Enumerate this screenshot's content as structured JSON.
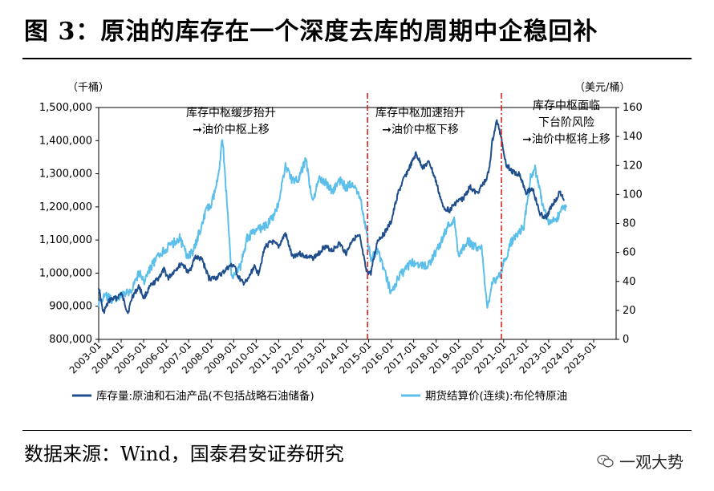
{
  "title": "图 3：原油的库存在一个深度去库的周期中企稳回补",
  "source": "数据来源：Wind，国泰君安证券研究",
  "watermark": "一观大势",
  "chart_data": {
    "type": "line",
    "left_axis_unit": "（千桶）",
    "right_axis_unit": "（美元/桶）",
    "left_ylim": [
      800000,
      1500000
    ],
    "right_ylim": [
      0,
      160
    ],
    "left_ticks": [
      "800,000",
      "900,000",
      "1,000,000",
      "1,100,000",
      "1,200,000",
      "1,300,000",
      "1,400,000",
      "1,500,000"
    ],
    "left_tick_values": [
      800000,
      900000,
      1000000,
      1100000,
      1200000,
      1300000,
      1400000,
      1500000
    ],
    "right_ticks": [
      "0",
      "20",
      "40",
      "60",
      "80",
      "100",
      "120",
      "140",
      "160"
    ],
    "right_tick_values": [
      0,
      20,
      40,
      60,
      80,
      100,
      120,
      140,
      160
    ],
    "xlim": [
      2003.0,
      2026.0
    ],
    "x_ticks": [
      "2003-01",
      "2004-01",
      "2005-01",
      "2006-01",
      "2007-01",
      "2008-01",
      "2009-01",
      "2010-01",
      "2011-01",
      "2012-01",
      "2013-01",
      "2014-01",
      "2015-01",
      "2016-01",
      "2017-01",
      "2018-01",
      "2019-01",
      "2020-01",
      "2021-01",
      "2022-01",
      "2023-01",
      "2024-01",
      "2025-01"
    ],
    "x_tick_values": [
      2003,
      2004,
      2005,
      2006,
      2007,
      2008,
      2009,
      2010,
      2011,
      2012,
      2013,
      2014,
      2015,
      2016,
      2017,
      2018,
      2019,
      2020,
      2021,
      2022,
      2023,
      2024,
      2025
    ],
    "series": [
      {
        "name": "库存量:原油和石油产品(不包括战略石油储备)",
        "axis": "left",
        "color": "#1f4e8c",
        "x": [
          2003.0,
          2003.2,
          2003.5,
          2003.8,
          2004.0,
          2004.3,
          2004.5,
          2004.8,
          2005.0,
          2005.3,
          2005.6,
          2005.9,
          2006.1,
          2006.4,
          2006.7,
          2007.0,
          2007.3,
          2007.6,
          2007.9,
          2008.2,
          2008.5,
          2008.8,
          2009.0,
          2009.2,
          2009.4,
          2009.6,
          2009.9,
          2010.1,
          2010.4,
          2010.7,
          2011.0,
          2011.3,
          2011.6,
          2011.9,
          2012.2,
          2012.5,
          2012.8,
          2013.0,
          2013.4,
          2013.7,
          2014.0,
          2014.3,
          2014.6,
          2014.9,
          2015.1,
          2015.4,
          2015.7,
          2016.0,
          2016.3,
          2016.6,
          2016.9,
          2017.1,
          2017.4,
          2017.7,
          2018.0,
          2018.3,
          2018.6,
          2018.9,
          2019.2,
          2019.5,
          2019.8,
          2020.0,
          2020.2,
          2020.35,
          2020.5,
          2020.7,
          2020.9,
          2021.1,
          2021.4,
          2021.7,
          2022.0,
          2022.3,
          2022.6,
          2022.9,
          2023.1,
          2023.3,
          2023.5,
          2023.7
        ],
        "values": [
          960000,
          880000,
          920000,
          925000,
          940000,
          880000,
          930000,
          960000,
          925000,
          960000,
          980000,
          1010000,
          985000,
          1010000,
          1030000,
          1000000,
          1050000,
          1040000,
          985000,
          985000,
          1000000,
          1020000,
          1025000,
          990000,
          970000,
          975000,
          1020000,
          1000000,
          1080000,
          1095000,
          1080000,
          1120000,
          1050000,
          1060000,
          1050000,
          1045000,
          1060000,
          1080000,
          1070000,
          1090000,
          1060000,
          1105000,
          1110000,
          1005000,
          1000000,
          1100000,
          1120000,
          1155000,
          1240000,
          1290000,
          1330000,
          1360000,
          1320000,
          1335000,
          1275000,
          1200000,
          1190000,
          1215000,
          1225000,
          1260000,
          1240000,
          1260000,
          1280000,
          1310000,
          1400000,
          1460000,
          1410000,
          1330000,
          1305000,
          1300000,
          1245000,
          1255000,
          1180000,
          1165000,
          1200000,
          1220000,
          1245000,
          1220000
        ]
      },
      {
        "name": "期货结算价(连续):布伦特原油",
        "axis": "right",
        "color": "#5bbfea",
        "x": [
          2003.0,
          2003.3,
          2003.6,
          2004.0,
          2004.4,
          2004.8,
          2005.0,
          2005.4,
          2005.8,
          2006.2,
          2006.6,
          2006.9,
          2007.2,
          2007.5,
          2007.8,
          2008.0,
          2008.3,
          2008.5,
          2008.7,
          2008.9,
          2009.0,
          2009.3,
          2009.6,
          2010.0,
          2010.4,
          2010.8,
          2011.0,
          2011.3,
          2011.6,
          2011.9,
          2012.2,
          2012.5,
          2012.8,
          2013.0,
          2013.4,
          2013.7,
          2014.0,
          2014.3,
          2014.6,
          2014.9,
          2015.1,
          2015.4,
          2015.7,
          2016.0,
          2016.3,
          2016.6,
          2016.9,
          2017.3,
          2017.6,
          2017.9,
          2018.2,
          2018.5,
          2018.8,
          2019.0,
          2019.4,
          2019.8,
          2020.0,
          2020.2,
          2020.3,
          2020.5,
          2020.8,
          2021.0,
          2021.3,
          2021.6,
          2021.9,
          2022.2,
          2022.4,
          2022.7,
          2023.0,
          2023.3,
          2023.6,
          2023.8
        ],
        "values": [
          25,
          30,
          27,
          30,
          33,
          46,
          40,
          52,
          60,
          65,
          70,
          58,
          60,
          75,
          90,
          92,
          110,
          140,
          95,
          45,
          45,
          50,
          70,
          75,
          78,
          85,
          95,
          120,
          110,
          110,
          125,
          95,
          110,
          110,
          102,
          110,
          105,
          108,
          100,
          75,
          55,
          62,
          47,
          32,
          42,
          48,
          53,
          52,
          50,
          58,
          66,
          78,
          82,
          58,
          68,
          63,
          66,
          32,
          22,
          40,
          43,
          52,
          66,
          72,
          78,
          112,
          118,
          95,
          80,
          82,
          90,
          92
        ]
      }
    ],
    "dividers": [
      2014.95,
      2020.9
    ],
    "annotations": [
      {
        "lines": [
          "库存中枢缓步抬升",
          "➞油价中枢上移"
        ]
      },
      {
        "lines": [
          "库存中枢加速抬升",
          "➞油价中枢下移"
        ]
      },
      {
        "lines": [
          "库存中枢面临",
          "下台阶风险",
          "➞油价中枢将上移"
        ]
      }
    ],
    "legend": [
      {
        "label": "库存量:原油和石油产品(不包括战略石油储备)",
        "color": "#1f4e8c"
      },
      {
        "label": "期货结算价(连续):布伦特原油",
        "color": "#5bbfea"
      }
    ]
  }
}
